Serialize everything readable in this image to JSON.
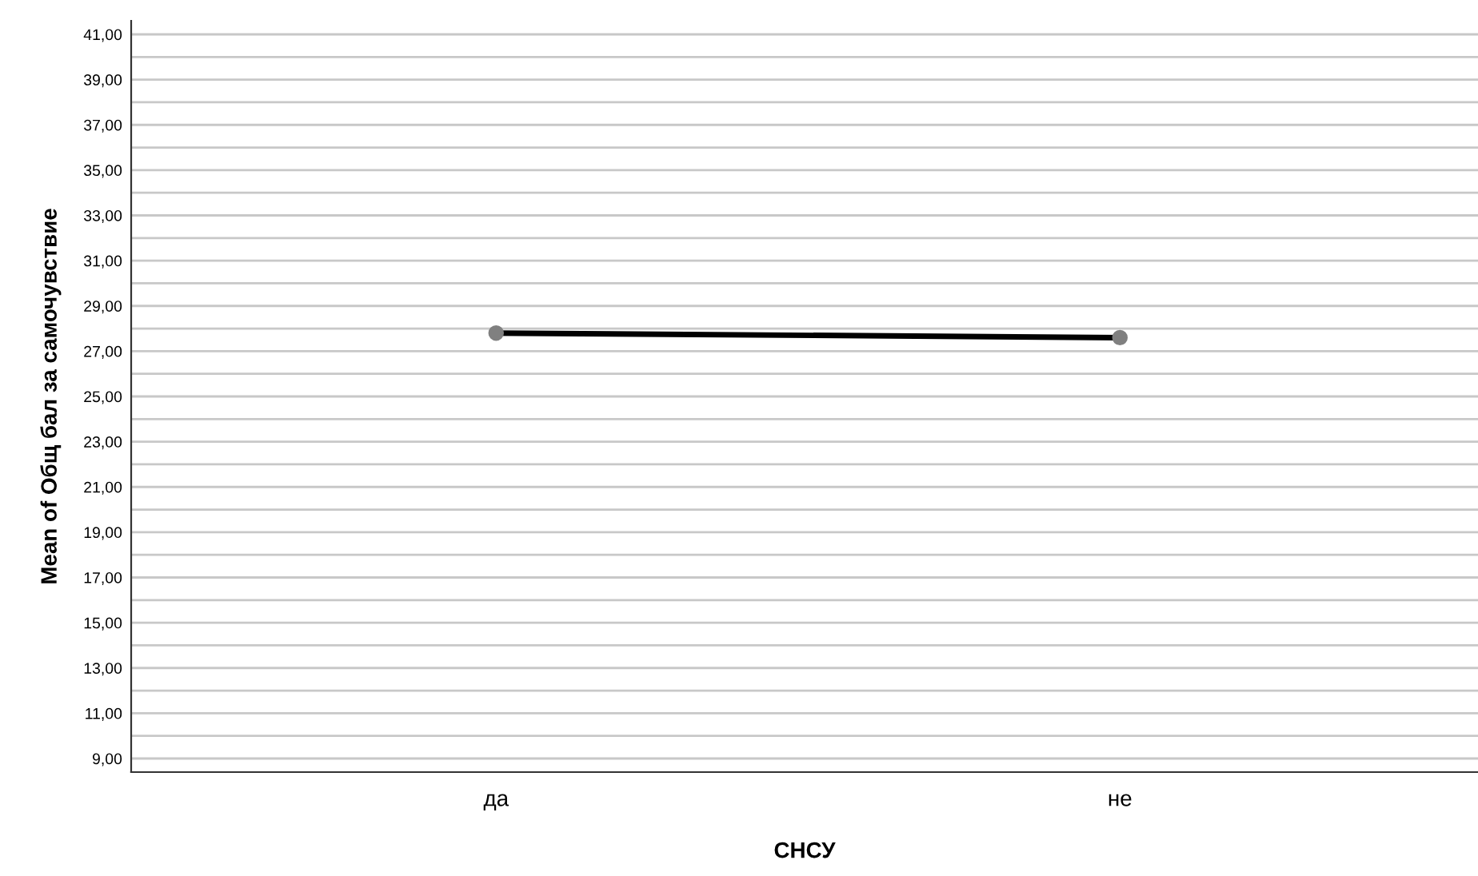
{
  "chart_data": {
    "type": "line",
    "xlabel": "СНСУ",
    "ylabel": "Mean of Общ бал за самочувствие",
    "categories": [
      "да",
      "не"
    ],
    "series": [
      {
        "color": "#000000",
        "values": [
          27.8,
          27.6
        ]
      }
    ],
    "ylim": [
      8.4,
      41.6
    ],
    "yticks": [
      {
        "value": 9,
        "label": "9,00"
      },
      {
        "value": 10,
        "label": null
      },
      {
        "value": 11,
        "label": "11,00"
      },
      {
        "value": 12,
        "label": null
      },
      {
        "value": 13,
        "label": "13,00"
      },
      {
        "value": 14,
        "label": null
      },
      {
        "value": 15,
        "label": "15,00"
      },
      {
        "value": 16,
        "label": null
      },
      {
        "value": 17,
        "label": "17,00"
      },
      {
        "value": 18,
        "label": null
      },
      {
        "value": 19,
        "label": "19,00"
      },
      {
        "value": 20,
        "label": null
      },
      {
        "value": 21,
        "label": "21,00"
      },
      {
        "value": 22,
        "label": null
      },
      {
        "value": 23,
        "label": "23,00"
      },
      {
        "value": 24,
        "label": null
      },
      {
        "value": 25,
        "label": "25,00"
      },
      {
        "value": 26,
        "label": null
      },
      {
        "value": 27,
        "label": "27,00"
      },
      {
        "value": 28,
        "label": null
      },
      {
        "value": 29,
        "label": "29,00"
      },
      {
        "value": 30,
        "label": null
      },
      {
        "value": 31,
        "label": "31,00"
      },
      {
        "value": 32,
        "label": null
      },
      {
        "value": 33,
        "label": "33,00"
      },
      {
        "value": 34,
        "label": null
      },
      {
        "value": 35,
        "label": "35,00"
      },
      {
        "value": 36,
        "label": null
      },
      {
        "value": 37,
        "label": "37,00"
      },
      {
        "value": 38,
        "label": null
      },
      {
        "value": 39,
        "label": "39,00"
      },
      {
        "value": 40,
        "label": null
      },
      {
        "value": 41,
        "label": "41,00"
      }
    ],
    "grid": "y",
    "marker": "circle",
    "line_style": "solid",
    "legend": false
  }
}
